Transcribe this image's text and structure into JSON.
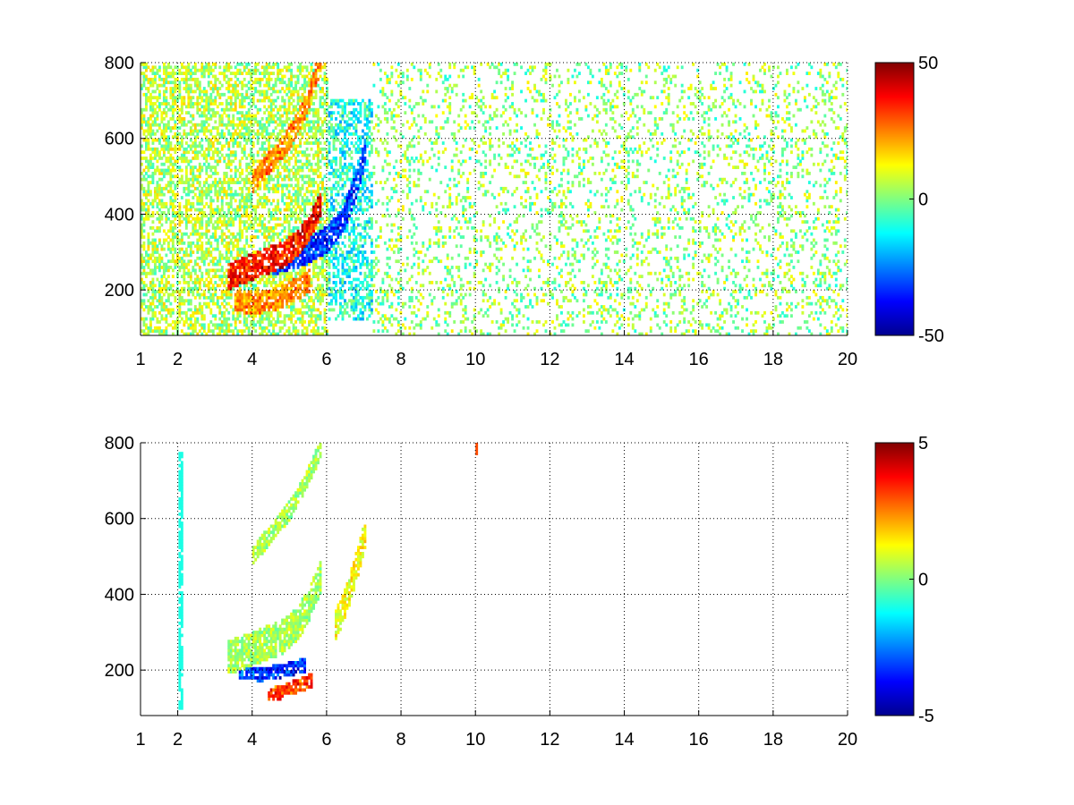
{
  "chart_data": [
    {
      "type": "heatmap",
      "title": "",
      "xlabel": "",
      "ylabel": "",
      "xlim": [
        1,
        20
      ],
      "ylim": [
        80,
        800
      ],
      "x_ticks": [
        1,
        2,
        4,
        6,
        8,
        10,
        12,
        14,
        16,
        18,
        20
      ],
      "x_tick_labels": [
        "1",
        "2",
        "4",
        "6",
        "8",
        "10",
        "12",
        "14",
        "16",
        "18",
        "20"
      ],
      "y_ticks": [
        200,
        400,
        600,
        800
      ],
      "y_tick_labels": [
        "200",
        "400",
        "600",
        "800"
      ],
      "grid": true,
      "colormap": "jet",
      "color_range": [
        -50,
        50
      ],
      "colorbar_ticks": [
        -50,
        0,
        50
      ],
      "colorbar_tick_labels": [
        "-50",
        "0",
        "50"
      ],
      "features": [
        {
          "kind": "band",
          "x": [
            3.3,
            3.8,
            4.3,
            4.8,
            5.2,
            5.5,
            5.8
          ],
          "y": [
            230,
            250,
            270,
            290,
            320,
            360,
            420
          ],
          "value": 45,
          "thickness": 35
        },
        {
          "kind": "band",
          "x": [
            4.0,
            4.5,
            5.0,
            5.4,
            5.8
          ],
          "y": [
            480,
            540,
            600,
            680,
            800
          ],
          "value": 30,
          "thickness": 30
        },
        {
          "kind": "band",
          "x": [
            4.5,
            5.0,
            5.5,
            6.0,
            6.4,
            6.8,
            7.0
          ],
          "y": [
            270,
            285,
            300,
            330,
            380,
            480,
            560
          ],
          "value": -40,
          "thickness": 35
        },
        {
          "kind": "band",
          "x": [
            3.5,
            4.0,
            4.5,
            5.0,
            5.5
          ],
          "y": [
            170,
            160,
            170,
            190,
            220
          ],
          "value": 30,
          "thickness": 30
        },
        {
          "kind": "region",
          "x": [
            1.0,
            6.0
          ],
          "y": [
            80,
            800
          ],
          "value": 5,
          "density": 0.55
        },
        {
          "kind": "region",
          "x": [
            6.0,
            7.2
          ],
          "y": [
            120,
            700
          ],
          "value": -10,
          "density": 0.5
        },
        {
          "kind": "region",
          "x": [
            7.2,
            20.0
          ],
          "y": [
            80,
            800
          ],
          "value": 2,
          "density": 0.18
        },
        {
          "kind": "stripe",
          "x": 15.85,
          "y": [
            80,
            800
          ],
          "value": 10
        },
        {
          "kind": "stripe",
          "x": 11.8,
          "y": [
            280,
            450
          ],
          "value": 10
        },
        {
          "kind": "stripe",
          "x": 12.3,
          "y": [
            100,
            800
          ],
          "value": 8
        }
      ]
    },
    {
      "type": "heatmap",
      "title": "",
      "xlabel": "",
      "ylabel": "",
      "xlim": [
        1,
        20
      ],
      "ylim": [
        80,
        800
      ],
      "x_ticks": [
        1,
        2,
        4,
        6,
        8,
        10,
        12,
        14,
        16,
        18,
        20
      ],
      "x_tick_labels": [
        "1",
        "2",
        "4",
        "6",
        "8",
        "10",
        "12",
        "14",
        "16",
        "18",
        "20"
      ],
      "y_ticks": [
        200,
        400,
        600,
        800
      ],
      "y_tick_labels": [
        "200",
        "400",
        "600",
        "800"
      ],
      "grid": true,
      "colormap": "jet",
      "color_range": [
        -5,
        5
      ],
      "colorbar_ticks": [
        -5,
        0,
        5
      ],
      "colorbar_tick_labels": [
        "-5",
        "0",
        "5"
      ],
      "features": [
        {
          "kind": "band",
          "x": [
            3.3,
            3.8,
            4.3,
            4.8,
            5.2,
            5.5,
            5.8
          ],
          "y": [
            230,
            245,
            265,
            285,
            320,
            370,
            440
          ],
          "value": 0.5,
          "thickness": 45
        },
        {
          "kind": "band",
          "x": [
            4.0,
            4.5,
            5.0,
            5.4,
            5.8
          ],
          "y": [
            500,
            560,
            620,
            690,
            780
          ],
          "value": 0.5,
          "thickness": 25
        },
        {
          "kind": "band",
          "x": [
            6.2,
            6.5,
            6.8,
            7.0
          ],
          "y": [
            310,
            380,
            480,
            560
          ],
          "value": 1.5,
          "thickness": 40
        },
        {
          "kind": "band",
          "x": [
            4.4,
            4.8,
            5.2,
            5.6
          ],
          "y": [
            130,
            140,
            155,
            170
          ],
          "value": 4,
          "thickness": 18
        },
        {
          "kind": "band",
          "x": [
            3.6,
            4.2,
            4.8,
            5.4
          ],
          "y": [
            190,
            185,
            195,
            210
          ],
          "value": -4,
          "thickness": 18
        },
        {
          "kind": "stripe",
          "x": 10.0,
          "y": [
            740,
            800
          ],
          "value": 3
        },
        {
          "kind": "stripe",
          "x": 2.05,
          "y": [
            90,
            770
          ],
          "value": -1
        }
      ]
    }
  ]
}
